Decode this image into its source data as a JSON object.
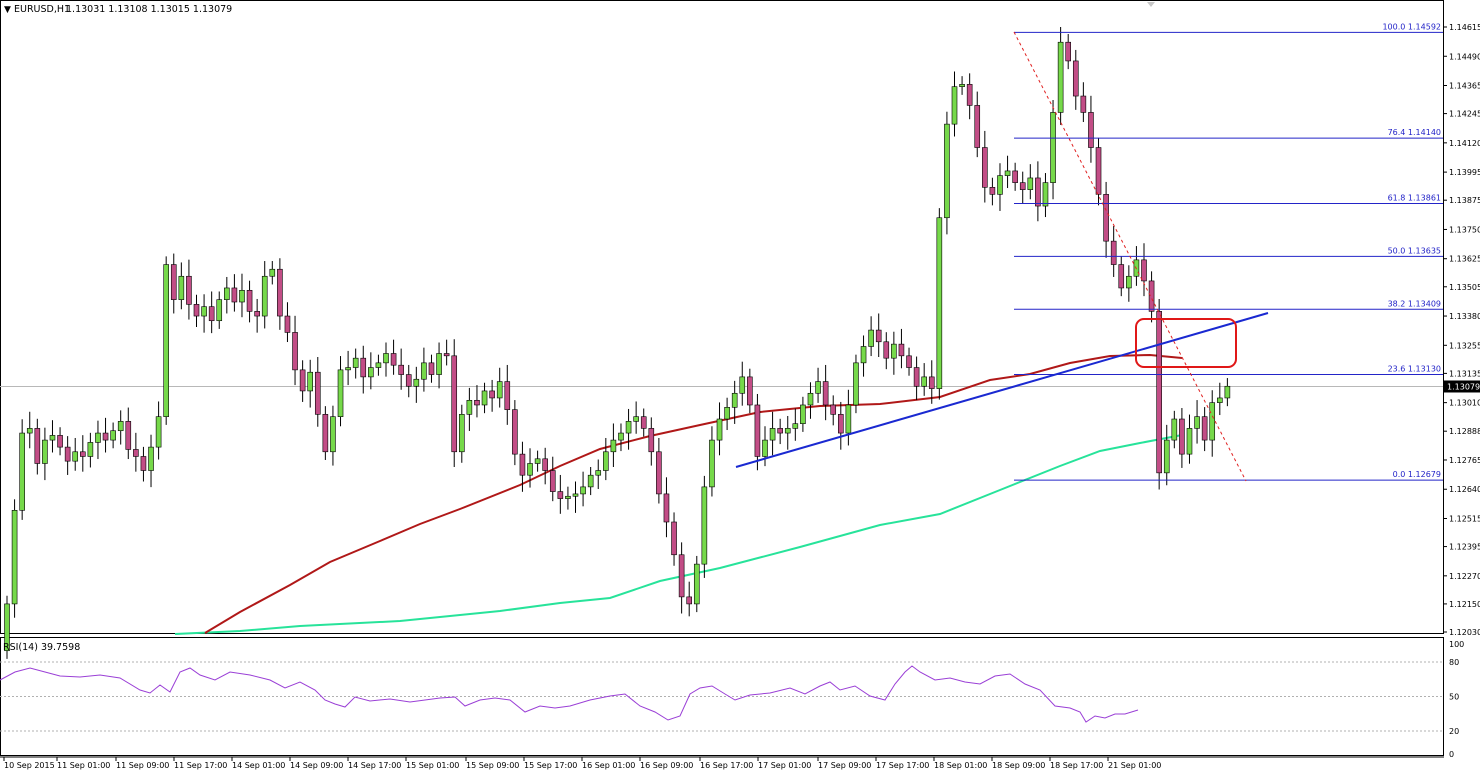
{
  "header": {
    "menu_glyph": "▼",
    "symbol": "EURUSD,H1",
    "ohlc": "1.13031 1.13108 1.13015 1.13079"
  },
  "rsi": {
    "label": "RSI(14) 39.7598",
    "levels": [
      "100",
      "80",
      "50",
      "20",
      "0"
    ]
  },
  "colors": {
    "bull_candle": "#76d94a",
    "bear_candle": "#c24d86",
    "ma_red": "#b01818",
    "ma_green": "#27e39a",
    "trendline": "#1a29d1",
    "fib": "#2324c8",
    "projection": "#e02020",
    "highlight_box": "#e01818",
    "rsi_line": "#9a3fd6",
    "axis": "#000000"
  },
  "chart_data": {
    "type": "candlestick",
    "symbol": "EURUSD,H1",
    "price_axis_labels": [
      "1.14615",
      "1.14490",
      "1.14365",
      "1.14245",
      "1.14120",
      "1.13995",
      "1.13875",
      "1.13750",
      "1.13625",
      "1.13505",
      "1.13380",
      "1.13255",
      "1.13135",
      "1.13010",
      "1.12888",
      "1.12765",
      "1.12640",
      "1.12515",
      "1.12395",
      "1.12270",
      "1.12150",
      "1.12030"
    ],
    "time_axis_labels": [
      "10 Sep 2015",
      "11 Sep 01:00",
      "11 Sep 09:00",
      "11 Sep 17:00",
      "14 Sep 01:00",
      "14 Sep 09:00",
      "14 Sep 17:00",
      "15 Sep 01:00",
      "15 Sep 09:00",
      "15 Sep 17:00",
      "16 Sep 01:00",
      "16 Sep 09:00",
      "16 Sep 17:00",
      "17 Sep 01:00",
      "17 Sep 09:00",
      "17 Sep 17:00",
      "18 Sep 01:00",
      "18 Sep 09:00",
      "18 Sep 17:00",
      "21 Sep 01:00"
    ],
    "current_price": "1.13079",
    "ylim": [
      1.1203,
      1.14615
    ],
    "fibonacci": [
      {
        "label": "100.0 1.14592",
        "price": 1.14592
      },
      {
        "label": "76.4 1.14140",
        "price": 1.1414
      },
      {
        "label": "61.8 1.13861",
        "price": 1.13861
      },
      {
        "label": "50.0 1.13635",
        "price": 1.13635
      },
      {
        "label": "38.2 1.13409",
        "price": 1.13409
      },
      {
        "label": "23.6 1.13130",
        "price": 1.1313
      },
      {
        "label": "0.0 1.12679",
        "price": 1.12679
      }
    ],
    "candles_close": [
      1.1215,
      1.1255,
      1.1288,
      1.129,
      1.1275,
      1.1285,
      1.1287,
      1.1282,
      1.1276,
      1.128,
      1.1278,
      1.1284,
      1.1288,
      1.1285,
      1.1289,
      1.1293,
      1.1281,
      1.1278,
      1.1272,
      1.1282,
      1.1295,
      1.136,
      1.1345,
      1.1355,
      1.1343,
      1.1338,
      1.1342,
      1.1336,
      1.1345,
      1.135,
      1.1344,
      1.1349,
      1.134,
      1.1338,
      1.1355,
      1.1358,
      1.1338,
      1.1331,
      1.1315,
      1.1306,
      1.1314,
      1.1296,
      1.128,
      1.1295,
      1.1315,
      1.1316,
      1.132,
      1.1312,
      1.1316,
      1.1318,
      1.1322,
      1.1317,
      1.1313,
      1.1308,
      1.1311,
      1.1318,
      1.1313,
      1.1322,
      1.1321,
      1.128,
      1.1296,
      1.1302,
      1.13,
      1.1306,
      1.1303,
      1.131,
      1.1298,
      1.1279,
      1.127,
      1.1275,
      1.1277,
      1.1272,
      1.1263,
      1.126,
      1.1261,
      1.1262,
      1.1265,
      1.127,
      1.1272,
      1.128,
      1.1285,
      1.1288,
      1.1293,
      1.1295,
      1.129,
      1.128,
      1.1262,
      1.125,
      1.1236,
      1.1218,
      1.1215,
      1.1232,
      1.1265,
      1.1285,
      1.1294,
      1.1299,
      1.1305,
      1.1312,
      1.13,
      1.1278,
      1.1285,
      1.129,
      1.1288,
      1.129,
      1.1292,
      1.13,
      1.1305,
      1.131,
      1.13,
      1.1296,
      1.1288,
      1.13,
      1.1318,
      1.1325,
      1.1332,
      1.1327,
      1.132,
      1.1326,
      1.1321,
      1.1316,
      1.1308,
      1.1312,
      1.1307,
      1.138,
      1.142,
      1.1436,
      1.1437,
      1.1428,
      1.141,
      1.1393,
      1.139,
      1.1398,
      1.14,
      1.1395,
      1.1392,
      1.1397,
      1.1385,
      1.1395,
      1.1425,
      1.1455,
      1.1447,
      1.1432,
      1.1425,
      1.141,
      1.139,
      1.137,
      1.136,
      1.135,
      1.1355,
      1.1362,
      1.1353,
      1.134,
      1.1271,
      1.1285,
      1.1294,
      1.1279,
      1.129,
      1.1295,
      1.1285,
      1.1301,
      1.1303,
      1.1308
    ]
  }
}
